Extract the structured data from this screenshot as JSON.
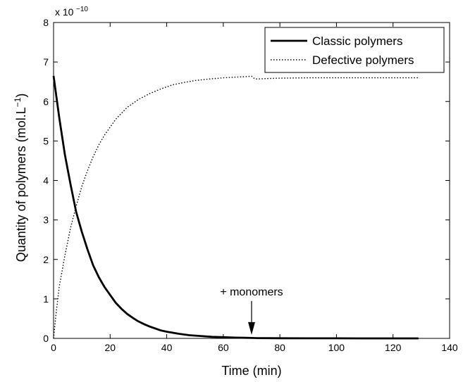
{
  "chart_data": {
    "type": "line",
    "xlabel": "Time (min)",
    "ylabel": "Quantity of polymers (mol.L",
    "ylabel_superscript": "−1",
    "ylabel_suffix": ")",
    "y_multiplier": "x 10",
    "y_multiplier_exp": "−10",
    "xlim": [
      0,
      140
    ],
    "ylim": [
      0,
      8
    ],
    "xticks": [
      0,
      20,
      40,
      60,
      80,
      100,
      120,
      140
    ],
    "yticks": [
      0,
      1,
      2,
      3,
      4,
      5,
      6,
      7,
      8
    ],
    "grid": false,
    "legend_position": "top-right",
    "series": [
      {
        "name": "Classic polymers",
        "style": "solid",
        "color": "#000000",
        "x": [
          0,
          2,
          4,
          6,
          8,
          10,
          12,
          14,
          16,
          18,
          20,
          22,
          24,
          26,
          28,
          30,
          32,
          34,
          36,
          38,
          40,
          44,
          48,
          52,
          56,
          60,
          64,
          68,
          70,
          72,
          76,
          80,
          90,
          100,
          110,
          120,
          129
        ],
        "y": [
          6.65,
          5.6,
          4.65,
          3.9,
          3.2,
          2.7,
          2.25,
          1.85,
          1.55,
          1.3,
          1.1,
          0.9,
          0.75,
          0.62,
          0.52,
          0.43,
          0.36,
          0.3,
          0.25,
          0.2,
          0.17,
          0.12,
          0.08,
          0.06,
          0.04,
          0.03,
          0.02,
          0.015,
          0.01,
          0.008,
          0.005,
          0.004,
          0.002,
          0.001,
          0.0,
          0.0,
          0.0
        ]
      },
      {
        "name": "Defective polymers",
        "style": "dotted",
        "color": "#000000",
        "x": [
          0,
          1,
          2,
          4,
          6,
          8,
          10,
          12,
          14,
          16,
          18,
          20,
          22,
          24,
          26,
          28,
          30,
          34,
          38,
          42,
          46,
          50,
          55,
          60,
          65,
          68,
          70,
          71,
          72,
          75,
          80,
          90,
          100,
          110,
          120,
          129
        ],
        "y": [
          0.0,
          0.7,
          1.3,
          2.1,
          2.8,
          3.35,
          3.85,
          4.25,
          4.6,
          4.9,
          5.15,
          5.35,
          5.55,
          5.7,
          5.85,
          5.95,
          6.05,
          6.2,
          6.32,
          6.42,
          6.48,
          6.53,
          6.57,
          6.6,
          6.62,
          6.63,
          6.64,
          6.58,
          6.57,
          6.58,
          6.59,
          6.6,
          6.6,
          6.6,
          6.6,
          6.6
        ]
      }
    ],
    "annotations": [
      {
        "text": "+ monomers",
        "x": 70,
        "y": 0.02,
        "arrow": "down"
      }
    ]
  }
}
